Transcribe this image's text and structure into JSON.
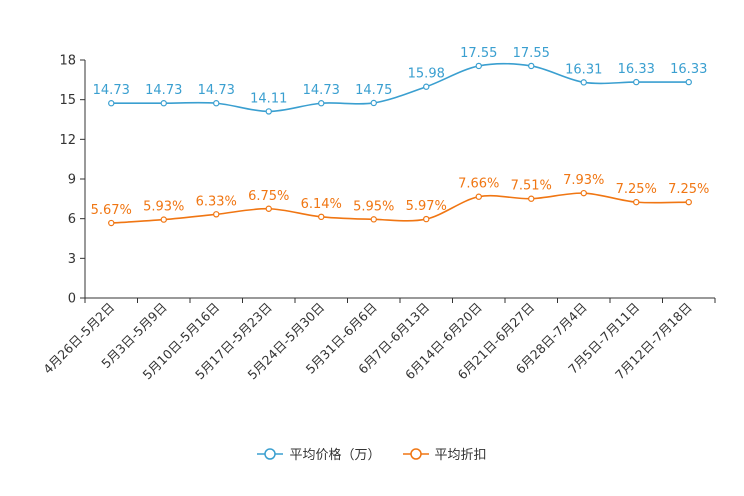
{
  "colors": {
    "price": "#3a9fd0",
    "discount": "#f07613",
    "axis": "#333333"
  },
  "legend": {
    "price_label": "平均价格（万）",
    "discount_label": "平均折扣"
  },
  "chart_data": {
    "type": "line",
    "title": "",
    "xlabel": "",
    "ylabel": "",
    "ylim": [
      0,
      18
    ],
    "yticks": [
      0,
      3,
      6,
      9,
      12,
      15,
      18
    ],
    "categories": [
      "4月26日-5月2日",
      "5月3日-5月9日",
      "5月10日-5月16日",
      "5月17日-5月23日",
      "5月24日-5月30日",
      "5月31日-6月6日",
      "6月7日-6月13日",
      "6月14日-6月20日",
      "6月21日-6月27日",
      "6月28日-7月4日",
      "7月5日-7月11日",
      "7月12日-7月18日"
    ],
    "series": [
      {
        "name": "平均价格（万）",
        "key": "price",
        "values": [
          14.73,
          14.73,
          14.73,
          14.11,
          14.73,
          14.75,
          15.98,
          17.55,
          17.55,
          16.31,
          16.33,
          16.33
        ],
        "labels": [
          "14.73",
          "14.73",
          "14.73",
          "14.11",
          "14.73",
          "14.75",
          "15.98",
          "17.55",
          "17.55",
          "16.31",
          "16.33",
          "16.33"
        ]
      },
      {
        "name": "平均折扣",
        "key": "discount",
        "values": [
          5.67,
          5.93,
          6.33,
          6.75,
          6.14,
          5.95,
          5.97,
          7.66,
          7.51,
          7.93,
          7.25,
          7.25
        ],
        "labels": [
          "5.67%",
          "5.93%",
          "6.33%",
          "6.75%",
          "6.14%",
          "5.95%",
          "5.97%",
          "7.66%",
          "7.51%",
          "7.93%",
          "7.25%",
          "7.25%"
        ]
      }
    ]
  }
}
